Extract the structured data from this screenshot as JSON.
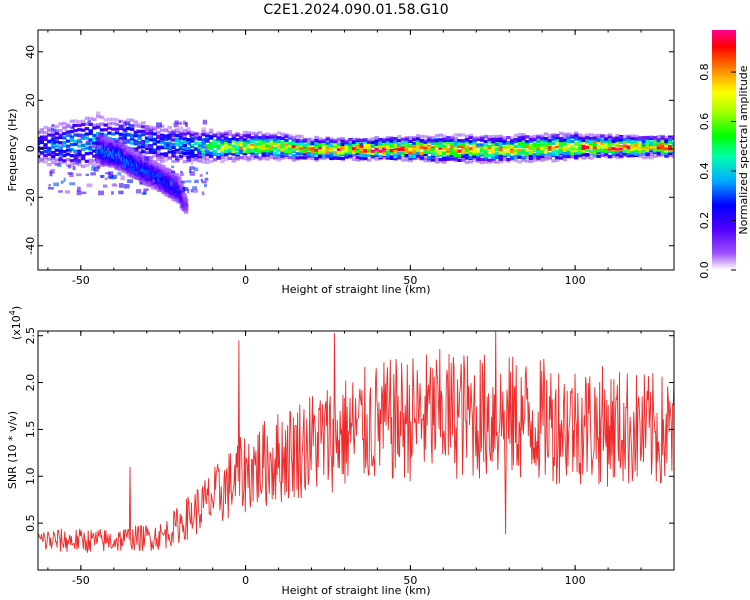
{
  "title": "C2E1.2024.090.01.58.G10",
  "colors": {
    "snr_line": "#ee2a2a",
    "colormap": [
      "#ffffff",
      "#7f00ff",
      "#0000ff",
      "#00b0ff",
      "#00ff80",
      "#00ff00",
      "#a0ff00",
      "#ffff00",
      "#ff8000",
      "#ff0000",
      "#ff0080"
    ]
  },
  "chart_data": [
    {
      "type": "heatmap",
      "xlabel": "Height of straight line (km)",
      "ylabel": "Frequency (Hz)",
      "xlim": [
        -63,
        130
      ],
      "ylim": [
        -50,
        49
      ],
      "xticks": [
        -50,
        0,
        50,
        100
      ],
      "yticks": [
        -40,
        -20,
        0,
        20,
        40
      ],
      "colorbar": {
        "label": "Normalized spectral amplitude",
        "range": [
          0,
          0.97
        ],
        "ticks": [
          "0.0",
          "0.2",
          "0.4",
          "0.6",
          "0.8"
        ],
        "tick_values": [
          0,
          0.2,
          0.4,
          0.6,
          0.8
        ]
      },
      "ridge": [
        {
          "x": -63,
          "f": 1,
          "w": 8,
          "amp": 0.3
        },
        {
          "x": -55,
          "f": 2,
          "w": 10,
          "amp": 0.35
        },
        {
          "x": -45,
          "f": 3,
          "w": 12,
          "amp": 0.4
        },
        {
          "x": -35,
          "f": 3,
          "w": 10,
          "amp": 0.35
        },
        {
          "x": -25,
          "f": 2,
          "w": 8,
          "amp": 0.35
        },
        {
          "x": -15,
          "f": 1,
          "w": 7,
          "amp": 0.45
        },
        {
          "x": -10,
          "f": 1,
          "w": 6,
          "amp": 0.6
        },
        {
          "x": 0,
          "f": 1,
          "w": 5,
          "amp": 0.75
        },
        {
          "x": 10,
          "f": 1,
          "w": 5,
          "amp": 0.8
        },
        {
          "x": 20,
          "f": 0,
          "w": 4,
          "amp": 0.85
        },
        {
          "x": 40,
          "f": 0,
          "w": 4,
          "amp": 0.95
        },
        {
          "x": 60,
          "f": 0,
          "w": 5,
          "amp": 0.8
        },
        {
          "x": 80,
          "f": 0,
          "w": 5,
          "amp": 0.75
        },
        {
          "x": 100,
          "f": 1,
          "w": 5,
          "amp": 0.8
        },
        {
          "x": 115,
          "f": 1,
          "w": 4,
          "amp": 0.9
        },
        {
          "x": 130,
          "f": 1,
          "w": 4,
          "amp": 0.85
        }
      ],
      "branch": [
        {
          "x": -45,
          "f": 0,
          "w": 6,
          "amp": 0.35
        },
        {
          "x": -38,
          "f": -3,
          "w": 6,
          "amp": 0.35
        },
        {
          "x": -32,
          "f": -8,
          "w": 6,
          "amp": 0.3
        },
        {
          "x": -26,
          "f": -12,
          "w": 6,
          "amp": 0.3
        },
        {
          "x": -20,
          "f": -17,
          "w": 6,
          "amp": 0.25
        },
        {
          "x": -18,
          "f": -24,
          "w": 5,
          "amp": 0.12
        }
      ]
    },
    {
      "type": "line",
      "xlabel": "Height of straight line (km)",
      "ylabel": "SNR (10 * v/v)",
      "scale_label": "(x10",
      "scale_exp": "4",
      "scale_close": ")",
      "xlim": [
        -63,
        130
      ],
      "ylim": [
        0,
        2.55
      ],
      "xticks": [
        -50,
        0,
        50,
        100
      ],
      "yticks": [
        0.5,
        1.0,
        1.5,
        2.0,
        2.5
      ],
      "trend": [
        {
          "x": -63,
          "y": 0.3
        },
        {
          "x": -40,
          "y": 0.3
        },
        {
          "x": -25,
          "y": 0.35
        },
        {
          "x": -15,
          "y": 0.6
        },
        {
          "x": 0,
          "y": 1.0
        },
        {
          "x": 20,
          "y": 1.3
        },
        {
          "x": 40,
          "y": 1.5
        },
        {
          "x": 60,
          "y": 1.6
        },
        {
          "x": 80,
          "y": 1.55
        },
        {
          "x": 100,
          "y": 1.5
        },
        {
          "x": 130,
          "y": 1.4
        }
      ],
      "peaks": [
        {
          "x": -2,
          "y": 2.45
        },
        {
          "x": 27,
          "y": 2.53
        },
        {
          "x": 76,
          "y": 2.55
        },
        {
          "x": 79,
          "y": 0.38
        },
        {
          "x": -35,
          "y": 1.1
        }
      ]
    }
  ]
}
